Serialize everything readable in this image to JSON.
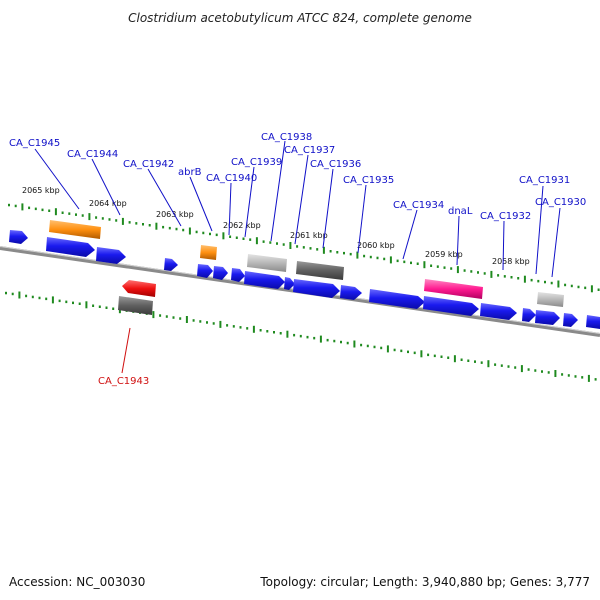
{
  "title": "Clostridium acetobutylicum ATCC 824, complete genome",
  "footer": {
    "accession": "Accession: NC_003030",
    "summary": "Topology: circular; Length: 3,940,880 bp; Genes: 3,777"
  },
  "colors": {
    "cds": "#1a1aee",
    "orange": "#ff9010",
    "gray": "#b0b0b0",
    "darkgray": "#606060",
    "red": "#ee1010",
    "magenta": "#ff1a90",
    "label": "#1010c8",
    "label_red": "#d01010",
    "ruler": "#1f8a1f",
    "backbone": "#8a8a8a"
  },
  "kbp_labels": [
    "2065 kbp",
    "2064 kbp",
    "2063 kbp",
    "2062 kbp",
    "2061 kbp",
    "2060 kbp",
    "2059 kbp",
    "2058 kbp"
  ],
  "gene_labels": [
    "CA_C1945",
    "CA_C1944",
    "CA_C1942",
    "abrB",
    "CA_C1940",
    "CA_C1939",
    "CA_C1938",
    "CA_C1937",
    "CA_C1936",
    "CA_C1935",
    "CA_C1934",
    "dnaL",
    "CA_C1932",
    "CA_C1931",
    "CA_C1930",
    "CA_C1943"
  ]
}
